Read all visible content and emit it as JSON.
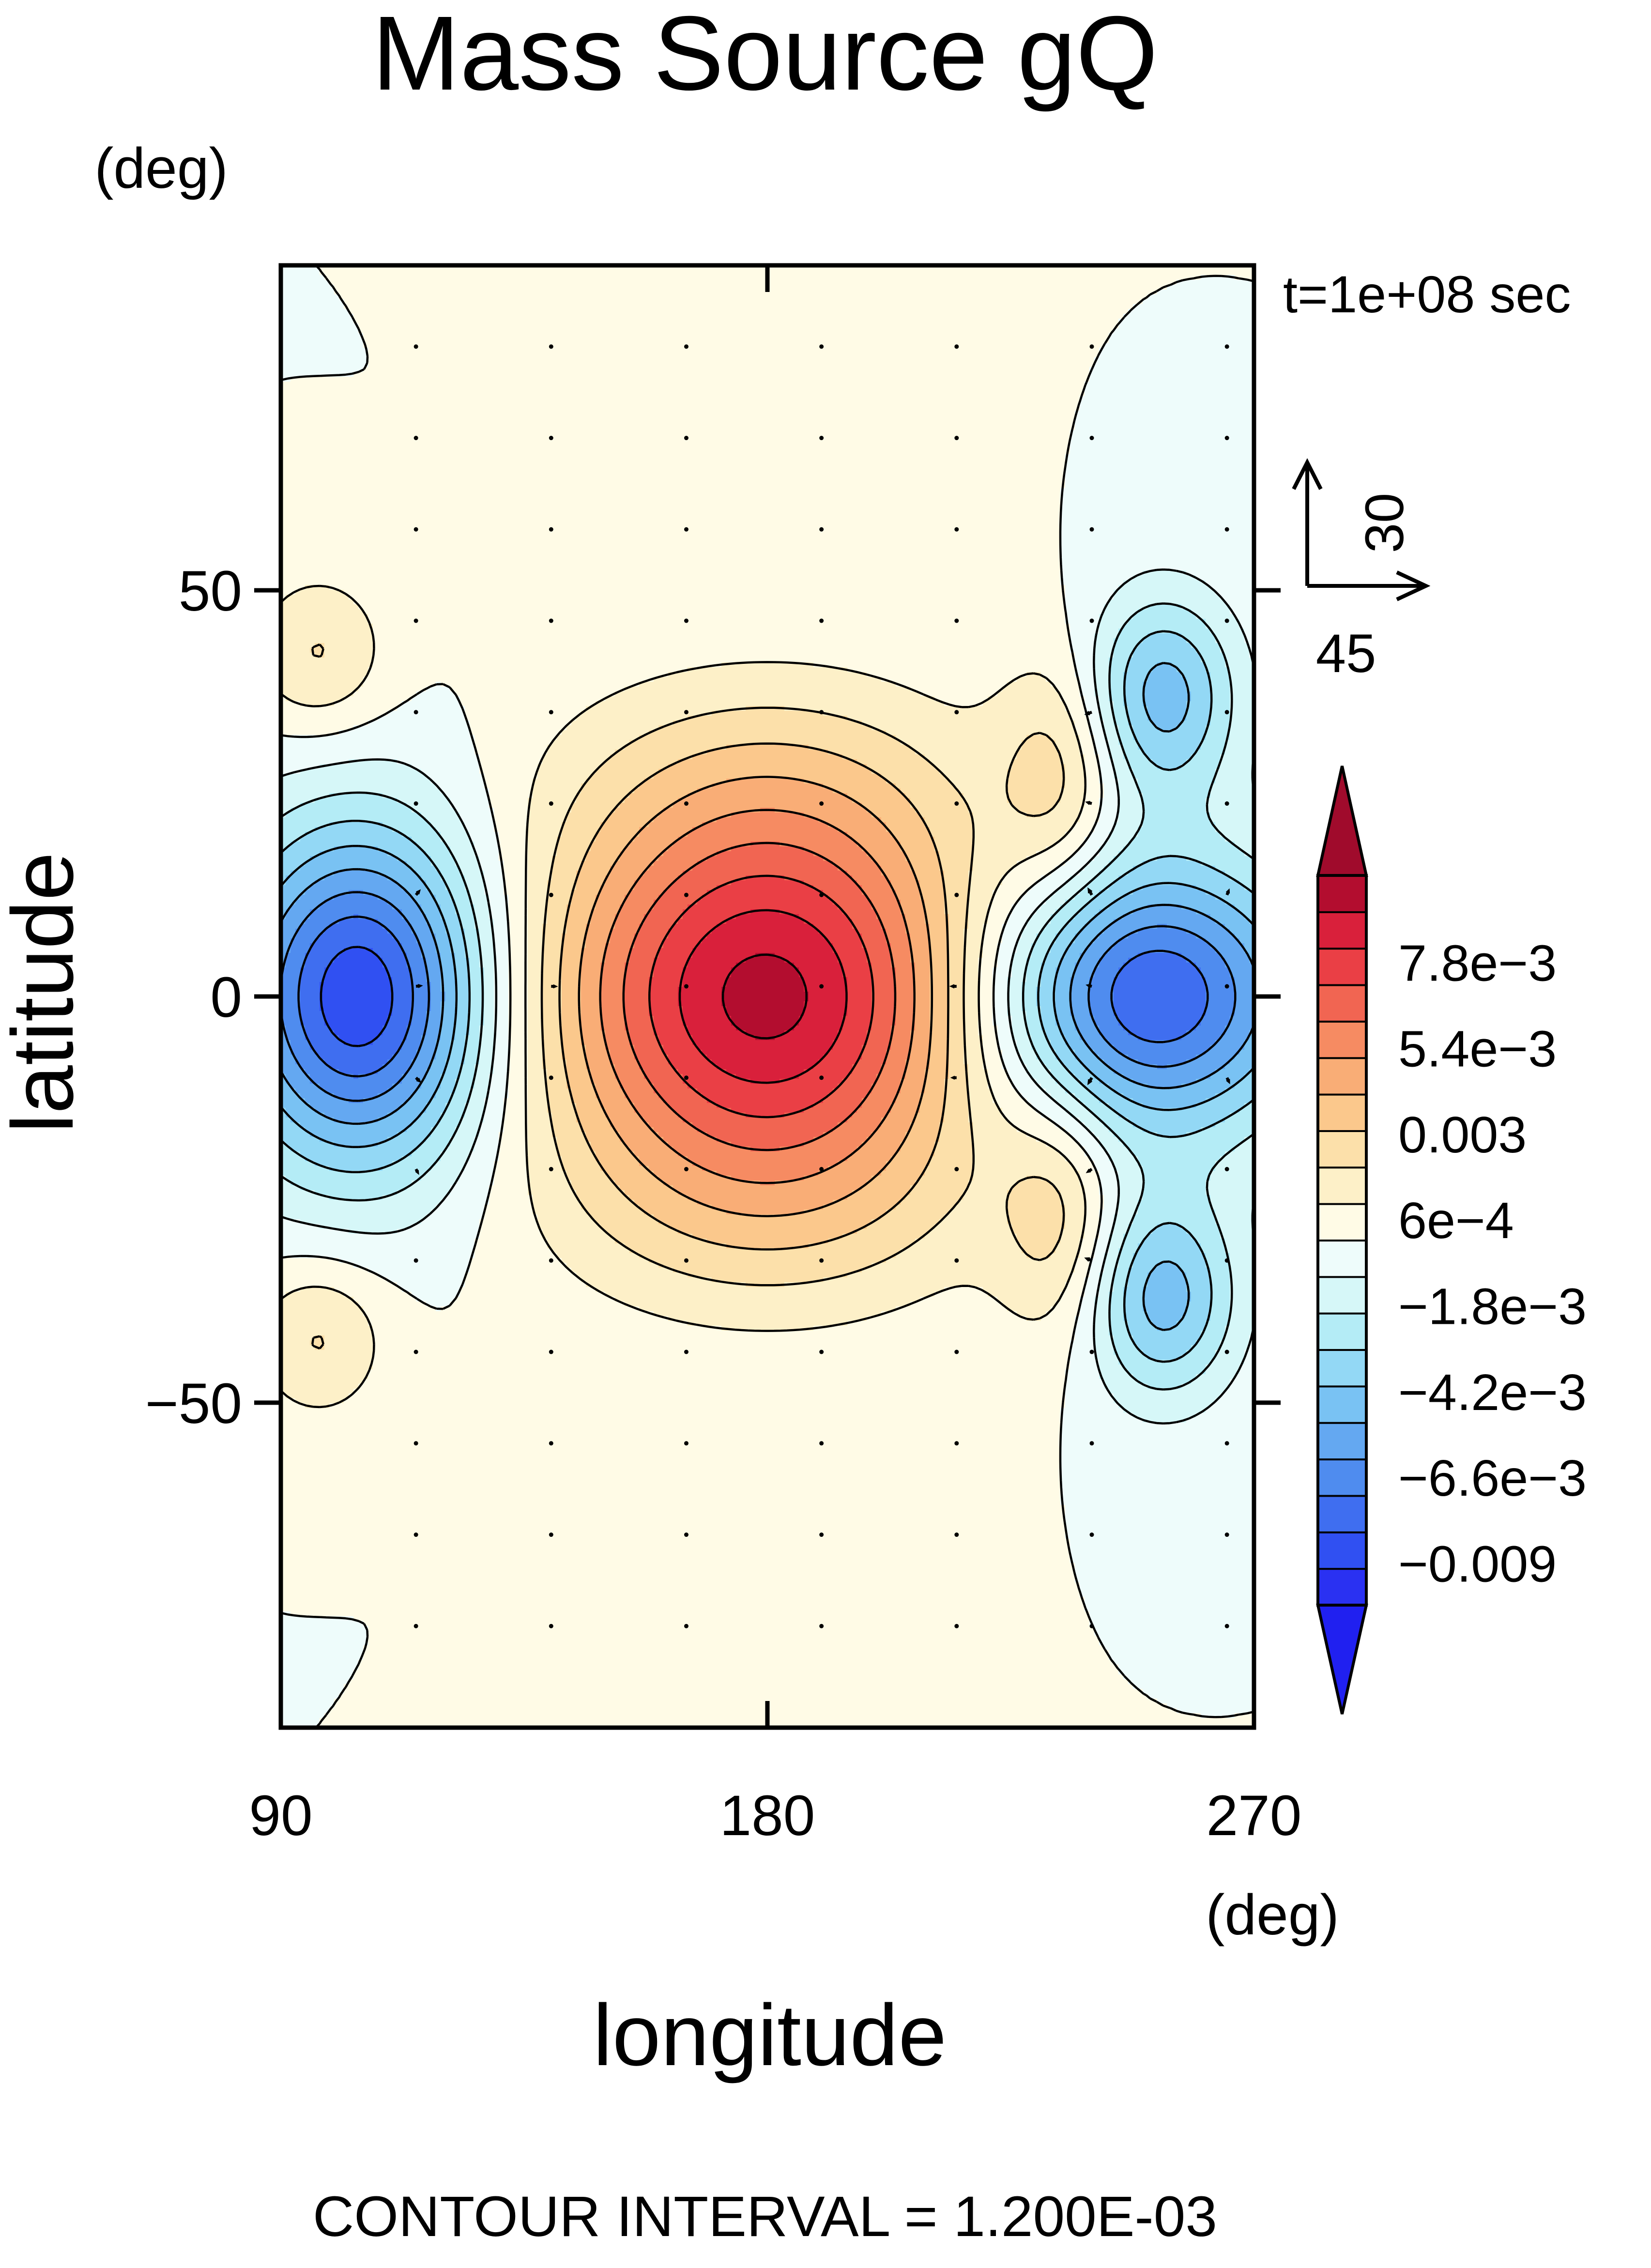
{
  "chart_data": {
    "type": "heatmap",
    "title": "Mass Source gQ",
    "xlabel": "longitude",
    "ylabel": "latitude",
    "x_unit": "(deg)",
    "y_unit": "(deg)",
    "time_label": "t=1e+08 sec",
    "footer": "CONTOUR INTERVAL = 1.200E-03",
    "xlim": [
      90,
      270
    ],
    "ylim": [
      -90,
      90
    ],
    "x_ticks": [
      {
        "value": 90,
        "label": "90"
      },
      {
        "value": 180,
        "label": "180"
      },
      {
        "value": 270,
        "label": "270"
      }
    ],
    "y_ticks": [
      {
        "value": 50,
        "label": "50"
      },
      {
        "value": 0,
        "label": "0"
      },
      {
        "value": -50,
        "label": "-50"
      }
    ],
    "reference_vector": {
      "x_label": "45",
      "y_label": "30"
    },
    "contour_interval": 0.0012,
    "colorbar": {
      "min": -0.0102,
      "max": 0.0102,
      "labels": [
        {
          "value": 0.0078,
          "label": "7.8e-3"
        },
        {
          "value": 0.0054,
          "label": "5.4e-3"
        },
        {
          "value": 0.003,
          "label": "0.003"
        },
        {
          "value": 0.0006,
          "label": "6e-4"
        },
        {
          "value": -0.0018,
          "label": "-1.8e-3"
        },
        {
          "value": -0.0042,
          "label": "-4.2e-3"
        },
        {
          "value": -0.0066,
          "label": "-6.6e-3"
        },
        {
          "value": -0.009,
          "label": "-0.009"
        }
      ],
      "colors": [
        "#2a31f2",
        "#3050f2",
        "#3f6ef0",
        "#4f8cef",
        "#64a8f1",
        "#79c2f3",
        "#93d8f5",
        "#b4ecf6",
        "#d6f7f8",
        "#eefcfb",
        "#fffbe6",
        "#fdf0c8",
        "#fce0aa",
        "#fbc88c",
        "#f9ad76",
        "#f68b62",
        "#f16552",
        "#ea3f45",
        "#d9203b",
        "#b30d2f"
      ],
      "lower_extend_color": "#2020f0",
      "upper_extend_color": "#a00b2c"
    },
    "sources": [
      {
        "lon": 180,
        "lat": 0,
        "amp": 0.0095,
        "sx": 29,
        "sy": 17
      },
      {
        "lon": 105,
        "lat": 0,
        "amp": -0.0092,
        "sx": 17,
        "sy": 15
      },
      {
        "lon": 250,
        "lat": 0,
        "amp": -0.0085,
        "sx": 21,
        "sy": 12
      },
      {
        "lon": 253,
        "lat": 37,
        "amp": -0.0046,
        "sx": 10,
        "sy": 9
      },
      {
        "lon": 253,
        "lat": -37,
        "amp": -0.0046,
        "sx": 10,
        "sy": 9
      },
      {
        "lon": 234,
        "lat": 27,
        "amp": 0.0024,
        "sx": 8,
        "sy": 11
      },
      {
        "lon": 234,
        "lat": -27,
        "amp": 0.0024,
        "sx": 8,
        "sy": 11
      },
      {
        "lon": 97,
        "lat": 42,
        "amp": 0.0022,
        "sx": 9,
        "sy": 7
      },
      {
        "lon": 97,
        "lat": -42,
        "amp": 0.0022,
        "sx": 9,
        "sy": 7
      },
      {
        "lon": 180,
        "lat": 27,
        "amp": 0.0014,
        "sx": 28,
        "sy": 10
      },
      {
        "lon": 180,
        "lat": -27,
        "amp": 0.0014,
        "sx": 28,
        "sy": 10
      }
    ]
  }
}
